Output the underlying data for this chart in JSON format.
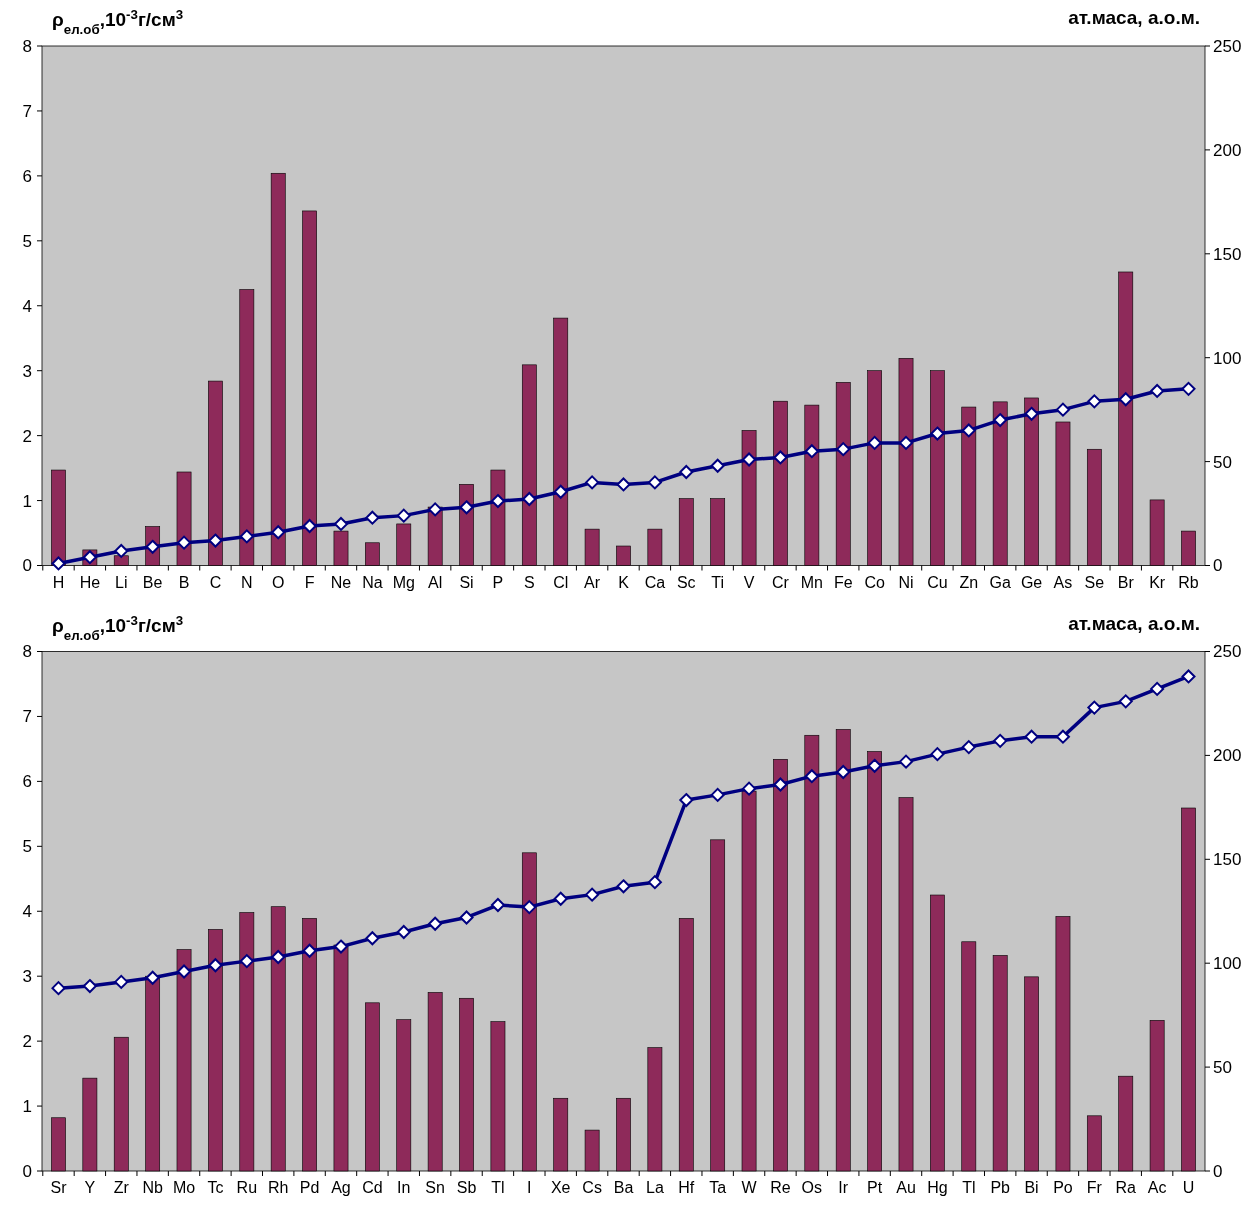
{
  "chart_data": [
    {
      "type": "bar",
      "ylabel": "ρ$_{ел.об}$,10$^{-3}$г/см$^{3}$",
      "y2label": "ат.маса, а.о.м.",
      "categories": [
        "H",
        "He",
        "Li",
        "Be",
        "B",
        "C",
        "N",
        "O",
        "F",
        "Ne",
        "Na",
        "Mg",
        "Al",
        "Si",
        "P",
        "S",
        "Cl",
        "Ar",
        "K",
        "Ca",
        "Sc",
        "Ti",
        "V",
        "Cr",
        "Mn",
        "Fe",
        "Co",
        "Ni",
        "Cu",
        "Zn",
        "Ga",
        "Ge",
        "As",
        "Se",
        "Br",
        "Kr",
        "Rb"
      ],
      "ylim": [
        0,
        8
      ],
      "yticks": [
        0,
        1,
        2,
        3,
        4,
        5,
        6,
        7,
        8
      ],
      "y2lim": [
        0,
        250
      ],
      "y2ticks": [
        0,
        50,
        100,
        150,
        200,
        250
      ],
      "grid": false,
      "marker": "diamond",
      "series": [
        {
          "color": "#8e2a5a",
          "values": [
            1.47,
            0.24,
            0.15,
            0.6,
            1.44,
            2.84,
            4.25,
            6.04,
            5.46,
            0.53,
            0.35,
            0.64,
            0.9,
            1.25,
            1.47,
            3.09,
            3.81,
            0.56,
            0.3,
            0.56,
            1.03,
            1.03,
            2.08,
            2.53,
            2.47,
            2.82,
            3.0,
            3.19,
            3.0,
            2.44,
            2.52,
            2.58,
            2.21,
            1.79,
            4.52,
            1.01,
            0.53
          ]
        },
        {
          "type": "line",
          "axis": "y2",
          "color": "#000080",
          "values": [
            1,
            4,
            7,
            9,
            11,
            12,
            14,
            16,
            19,
            20,
            23,
            24,
            27,
            28,
            31,
            32,
            35.5,
            40,
            39,
            40,
            45,
            48,
            51,
            52,
            55,
            56,
            59,
            59,
            63.5,
            65,
            70,
            73,
            75,
            79,
            80,
            84,
            85
          ]
        }
      ]
    },
    {
      "type": "bar",
      "ylabel": "ρ$_{ел.об}$,10$^{-3}$г/см$^{3}$",
      "y2label": "ат.маса, а.о.м.",
      "categories": [
        "Sr",
        "Y",
        "Zr",
        "Nb",
        "Mo",
        "Tc",
        "Ru",
        "Rh",
        "Pd",
        "Ag",
        "Cd",
        "In",
        "Sn",
        "Sb",
        "Tl",
        "I",
        "Xe",
        "Cs",
        "Ba",
        "La",
        "Hf",
        "Ta",
        "W",
        "Re",
        "Os",
        "Ir",
        "Pt",
        "Au",
        "Hg",
        "Tl",
        "Pb",
        "Bi",
        "Po",
        "Fr",
        "Ra",
        "Ac",
        "U"
      ],
      "ylim": [
        0,
        8
      ],
      "yticks": [
        0,
        1,
        2,
        3,
        4,
        5,
        6,
        7,
        8
      ],
      "y2lim": [
        0,
        250
      ],
      "y2ticks": [
        0,
        50,
        100,
        150,
        200,
        250
      ],
      "grid": false,
      "marker": "diamond",
      "series": [
        {
          "color": "#8e2a5a",
          "values": [
            0.82,
            1.43,
            2.06,
            3.0,
            3.41,
            3.72,
            3.98,
            4.07,
            3.89,
            3.48,
            2.59,
            2.33,
            2.75,
            2.66,
            2.3,
            4.9,
            1.12,
            0.63,
            1.12,
            1.9,
            3.89,
            5.1,
            5.85,
            6.34,
            6.71,
            6.8,
            6.46,
            5.75,
            4.25,
            3.53,
            3.32,
            2.99,
            3.92,
            0.85,
            1.46,
            2.32,
            5.59
          ]
        },
        {
          "type": "line",
          "axis": "y2",
          "color": "#000080",
          "values": [
            88,
            89,
            91,
            93,
            96,
            99,
            101,
            103,
            106,
            108,
            112,
            115,
            119,
            122,
            128,
            127,
            131,
            133,
            137,
            139,
            178.5,
            181,
            184,
            186,
            190,
            192,
            195,
            197,
            200.6,
            204,
            207,
            209,
            209,
            223,
            226,
            232,
            238
          ]
        }
      ]
    }
  ]
}
